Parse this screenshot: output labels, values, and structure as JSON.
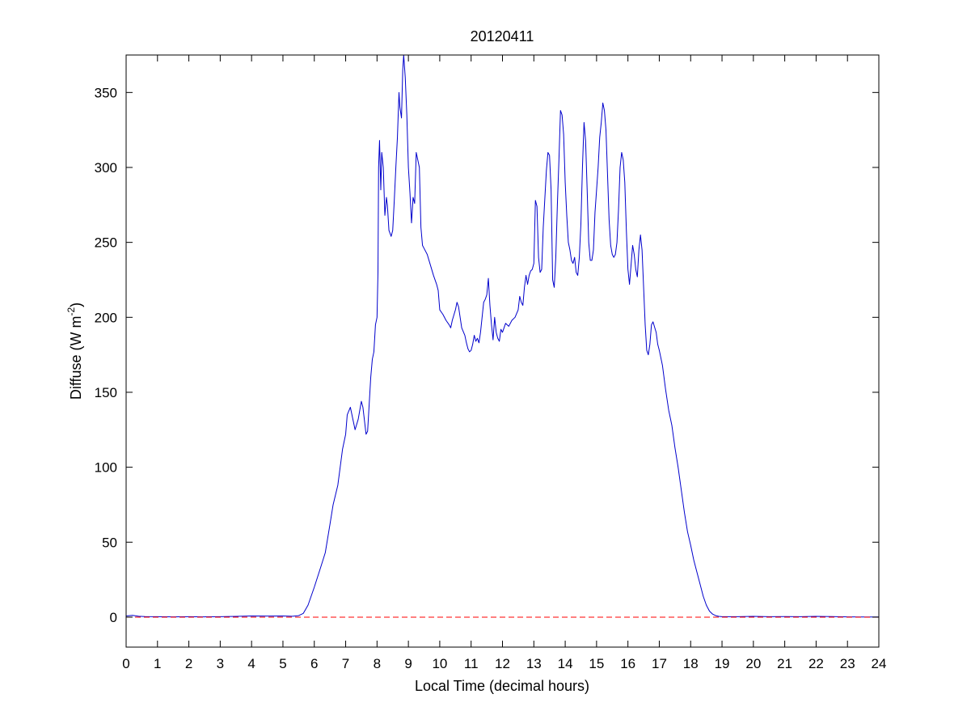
{
  "chart_data": {
    "type": "line",
    "title": "20120411",
    "xlabel": "Local Time (decimal hours)",
    "ylabel_base": "Diffuse (W m",
    "ylabel_sup": "-2",
    "ylabel_close": ")",
    "xlim": [
      0,
      24
    ],
    "ylim": [
      -20,
      375
    ],
    "xticks": [
      0,
      1,
      2,
      3,
      4,
      5,
      6,
      7,
      8,
      9,
      10,
      11,
      12,
      13,
      14,
      15,
      16,
      17,
      18,
      19,
      20,
      21,
      22,
      23,
      24
    ],
    "yticks": [
      0,
      50,
      100,
      150,
      200,
      250,
      300,
      350
    ],
    "grid": false,
    "legend": "none",
    "series": [
      {
        "color": "#0000cc",
        "style": "solid",
        "points": [
          [
            0.0,
            0.8
          ],
          [
            0.2,
            1.2
          ],
          [
            0.4,
            0.6
          ],
          [
            0.6,
            0.4
          ],
          [
            1.0,
            0.3
          ],
          [
            1.5,
            0.2
          ],
          [
            2.0,
            0.3
          ],
          [
            2.5,
            0.2
          ],
          [
            3.0,
            0.3
          ],
          [
            3.5,
            0.5
          ],
          [
            4.0,
            0.8
          ],
          [
            4.5,
            0.7
          ],
          [
            5.0,
            0.8
          ],
          [
            5.3,
            0.6
          ],
          [
            5.5,
            1.0
          ],
          [
            5.65,
            2.5
          ],
          [
            5.8,
            8
          ],
          [
            6.0,
            20
          ],
          [
            6.2,
            33
          ],
          [
            6.35,
            43
          ],
          [
            6.5,
            62
          ],
          [
            6.6,
            75
          ],
          [
            6.75,
            88
          ],
          [
            6.9,
            112
          ],
          [
            7.0,
            122
          ],
          [
            7.05,
            135
          ],
          [
            7.15,
            140
          ],
          [
            7.25,
            130
          ],
          [
            7.3,
            125
          ],
          [
            7.4,
            132
          ],
          [
            7.5,
            144
          ],
          [
            7.55,
            140
          ],
          [
            7.65,
            122
          ],
          [
            7.7,
            124
          ],
          [
            7.8,
            160
          ],
          [
            7.85,
            172
          ],
          [
            7.9,
            177
          ],
          [
            7.95,
            195
          ],
          [
            8.0,
            200
          ],
          [
            8.03,
            230
          ],
          [
            8.05,
            300
          ],
          [
            8.08,
            318
          ],
          [
            8.12,
            285
          ],
          [
            8.15,
            310
          ],
          [
            8.2,
            300
          ],
          [
            8.25,
            268
          ],
          [
            8.3,
            280
          ],
          [
            8.33,
            275
          ],
          [
            8.38,
            258
          ],
          [
            8.45,
            254
          ],
          [
            8.5,
            258
          ],
          [
            8.55,
            278
          ],
          [
            8.6,
            300
          ],
          [
            8.65,
            320
          ],
          [
            8.7,
            350
          ],
          [
            8.73,
            340
          ],
          [
            8.78,
            333
          ],
          [
            8.82,
            365
          ],
          [
            8.85,
            375
          ],
          [
            8.9,
            360
          ],
          [
            8.95,
            335
          ],
          [
            9.0,
            300
          ],
          [
            9.05,
            283
          ],
          [
            9.1,
            263
          ],
          [
            9.15,
            280
          ],
          [
            9.2,
            276
          ],
          [
            9.25,
            310
          ],
          [
            9.3,
            305
          ],
          [
            9.35,
            300
          ],
          [
            9.4,
            260
          ],
          [
            9.45,
            248
          ],
          [
            9.5,
            246
          ],
          [
            9.6,
            242
          ],
          [
            9.7,
            235
          ],
          [
            9.8,
            228
          ],
          [
            9.9,
            222
          ],
          [
            9.95,
            218
          ],
          [
            10.0,
            205
          ],
          [
            10.1,
            202
          ],
          [
            10.2,
            198
          ],
          [
            10.3,
            195
          ],
          [
            10.35,
            193
          ],
          [
            10.4,
            198
          ],
          [
            10.5,
            205
          ],
          [
            10.55,
            210
          ],
          [
            10.6,
            207
          ],
          [
            10.7,
            193
          ],
          [
            10.8,
            188
          ],
          [
            10.85,
            183
          ],
          [
            10.9,
            179
          ],
          [
            10.95,
            177
          ],
          [
            11.0,
            178
          ],
          [
            11.05,
            182
          ],
          [
            11.1,
            188
          ],
          [
            11.15,
            184
          ],
          [
            11.2,
            186
          ],
          [
            11.25,
            183
          ],
          [
            11.3,
            190
          ],
          [
            11.4,
            210
          ],
          [
            11.45,
            212
          ],
          [
            11.5,
            215
          ],
          [
            11.55,
            226
          ],
          [
            11.6,
            208
          ],
          [
            11.65,
            195
          ],
          [
            11.7,
            185
          ],
          [
            11.75,
            200
          ],
          [
            11.8,
            190
          ],
          [
            11.85,
            186
          ],
          [
            11.9,
            184
          ],
          [
            11.95,
            192
          ],
          [
            12.0,
            190
          ],
          [
            12.1,
            196
          ],
          [
            12.2,
            194
          ],
          [
            12.3,
            198
          ],
          [
            12.4,
            200
          ],
          [
            12.5,
            205
          ],
          [
            12.55,
            214
          ],
          [
            12.6,
            210
          ],
          [
            12.65,
            208
          ],
          [
            12.7,
            220
          ],
          [
            12.75,
            228
          ],
          [
            12.8,
            222
          ],
          [
            12.85,
            228
          ],
          [
            12.9,
            231
          ],
          [
            12.95,
            232
          ],
          [
            13.0,
            236
          ],
          [
            13.05,
            278
          ],
          [
            13.1,
            274
          ],
          [
            13.15,
            240
          ],
          [
            13.2,
            230
          ],
          [
            13.25,
            232
          ],
          [
            13.3,
            260
          ],
          [
            13.4,
            298
          ],
          [
            13.45,
            310
          ],
          [
            13.5,
            308
          ],
          [
            13.55,
            285
          ],
          [
            13.6,
            225
          ],
          [
            13.65,
            220
          ],
          [
            13.7,
            240
          ],
          [
            13.75,
            275
          ],
          [
            13.8,
            305
          ],
          [
            13.85,
            338
          ],
          [
            13.9,
            335
          ],
          [
            13.95,
            322
          ],
          [
            14.0,
            290
          ],
          [
            14.05,
            268
          ],
          [
            14.1,
            250
          ],
          [
            14.15,
            245
          ],
          [
            14.2,
            238
          ],
          [
            14.25,
            236
          ],
          [
            14.3,
            240
          ],
          [
            14.35,
            230
          ],
          [
            14.4,
            228
          ],
          [
            14.45,
            240
          ],
          [
            14.5,
            262
          ],
          [
            14.55,
            300
          ],
          [
            14.6,
            330
          ],
          [
            14.65,
            318
          ],
          [
            14.7,
            285
          ],
          [
            14.75,
            250
          ],
          [
            14.8,
            238
          ],
          [
            14.85,
            238
          ],
          [
            14.9,
            245
          ],
          [
            14.95,
            270
          ],
          [
            15.0,
            285
          ],
          [
            15.05,
            300
          ],
          [
            15.1,
            320
          ],
          [
            15.15,
            330
          ],
          [
            15.2,
            343
          ],
          [
            15.25,
            338
          ],
          [
            15.3,
            325
          ],
          [
            15.35,
            295
          ],
          [
            15.4,
            265
          ],
          [
            15.45,
            248
          ],
          [
            15.5,
            242
          ],
          [
            15.55,
            240
          ],
          [
            15.6,
            242
          ],
          [
            15.65,
            250
          ],
          [
            15.7,
            272
          ],
          [
            15.75,
            300
          ],
          [
            15.8,
            310
          ],
          [
            15.85,
            305
          ],
          [
            15.9,
            290
          ],
          [
            15.95,
            258
          ],
          [
            16.0,
            232
          ],
          [
            16.05,
            222
          ],
          [
            16.1,
            235
          ],
          [
            16.15,
            248
          ],
          [
            16.2,
            242
          ],
          [
            16.25,
            232
          ],
          [
            16.3,
            227
          ],
          [
            16.35,
            245
          ],
          [
            16.4,
            255
          ],
          [
            16.45,
            245
          ],
          [
            16.5,
            220
          ],
          [
            16.55,
            195
          ],
          [
            16.6,
            178
          ],
          [
            16.65,
            175
          ],
          [
            16.7,
            182
          ],
          [
            16.75,
            195
          ],
          [
            16.8,
            197
          ],
          [
            16.9,
            190
          ],
          [
            16.95,
            182
          ],
          [
            17.0,
            178
          ],
          [
            17.1,
            168
          ],
          [
            17.2,
            152
          ],
          [
            17.3,
            138
          ],
          [
            17.4,
            128
          ],
          [
            17.5,
            113
          ],
          [
            17.6,
            100
          ],
          [
            17.7,
            85
          ],
          [
            17.8,
            70
          ],
          [
            17.9,
            57
          ],
          [
            18.0,
            48
          ],
          [
            18.1,
            38
          ],
          [
            18.2,
            30
          ],
          [
            18.3,
            22
          ],
          [
            18.4,
            14
          ],
          [
            18.5,
            8
          ],
          [
            18.6,
            4
          ],
          [
            18.7,
            2
          ],
          [
            18.8,
            1
          ],
          [
            18.9,
            0.5
          ],
          [
            19.0,
            0.3
          ],
          [
            19.5,
            0.3
          ],
          [
            20.0,
            0.5
          ],
          [
            20.5,
            0.3
          ],
          [
            21.0,
            0.4
          ],
          [
            21.5,
            0.3
          ],
          [
            22.0,
            0.5
          ],
          [
            22.5,
            0.4
          ],
          [
            23.0,
            0.2
          ],
          [
            23.5,
            0.1
          ],
          [
            24.0,
            0.1
          ]
        ]
      },
      {
        "color": "#ff0000",
        "style": "dashed",
        "points": [
          [
            0,
            0
          ],
          [
            24,
            0
          ]
        ]
      }
    ]
  }
}
